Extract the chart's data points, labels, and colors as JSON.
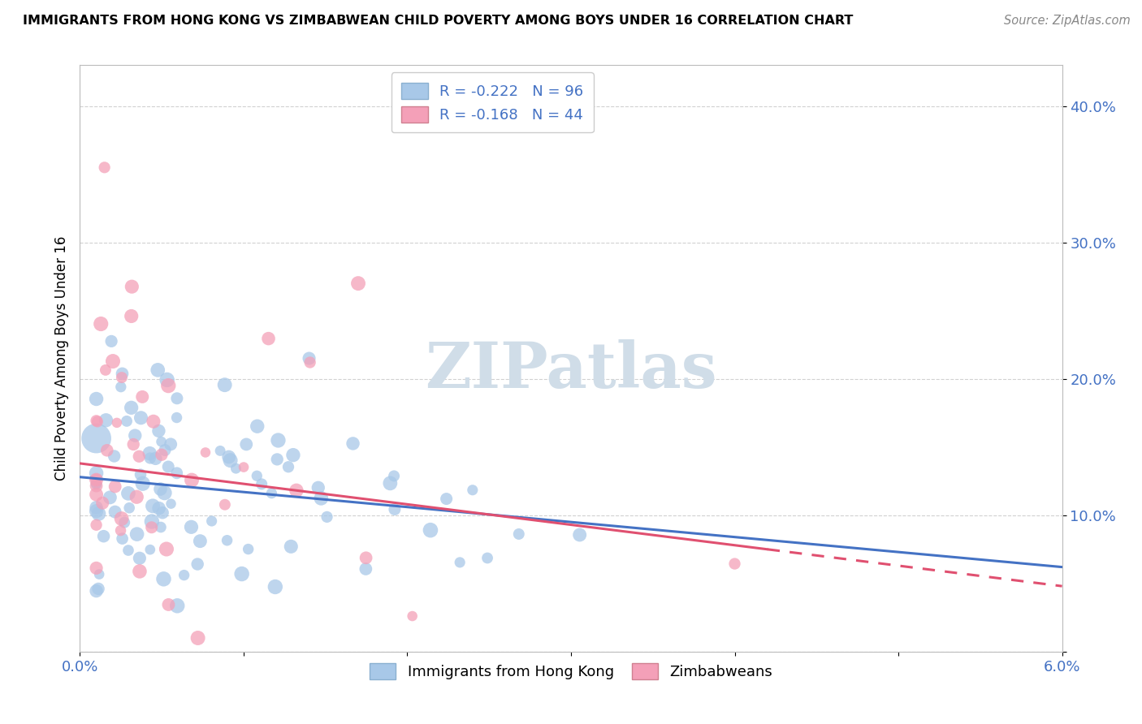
{
  "title": "IMMIGRANTS FROM HONG KONG VS ZIMBABWEAN CHILD POVERTY AMONG BOYS UNDER 16 CORRELATION CHART",
  "source": "Source: ZipAtlas.com",
  "ylabel": "Child Poverty Among Boys Under 16",
  "xlim": [
    0.0,
    0.06
  ],
  "ylim": [
    0.0,
    0.43
  ],
  "xticks": [
    0.0,
    0.01,
    0.02,
    0.03,
    0.04,
    0.05,
    0.06
  ],
  "yticks": [
    0.0,
    0.1,
    0.2,
    0.3,
    0.4
  ],
  "hk_color": "#a8c8e8",
  "zim_color": "#f4a0b8",
  "hk_line_color": "#4472c4",
  "zim_line_color": "#e05070",
  "R_hk": -0.222,
  "N_hk": 96,
  "R_zim": -0.168,
  "N_zim": 44,
  "legend_label_color": "#4472c4",
  "watermark": "ZIPatlas",
  "hk_intercept": 0.128,
  "hk_slope_per_unit": -1.1,
  "zim_intercept": 0.138,
  "zim_slope_per_unit": -1.5
}
